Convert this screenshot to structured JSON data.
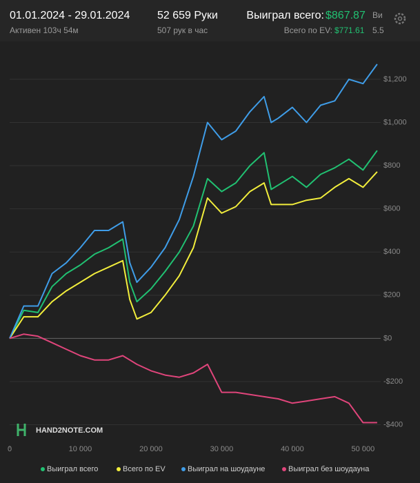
{
  "header": {
    "dates": "01.01.2024 - 29.01.2024",
    "active": "Активен 103ч 54м",
    "hands": "52 659 Руки",
    "rate": "507 рук в час",
    "won_label": "Выиграл всего:",
    "won_value": "$867.87",
    "ev_label": "Всего по EV:",
    "ev_value": "$771.61",
    "cut_label": "Ви",
    "cut_value": "5.5",
    "watermark": "HAND2NOTE.COM"
  },
  "chart_data": {
    "type": "line",
    "x": [
      0,
      2000,
      4000,
      6000,
      8000,
      10000,
      12000,
      14000,
      16000,
      17000,
      18000,
      20000,
      22000,
      24000,
      26000,
      28000,
      30000,
      32000,
      34000,
      36000,
      37000,
      38000,
      40000,
      42000,
      44000,
      46000,
      48000,
      50000,
      52000
    ],
    "series": [
      {
        "name": "Выиграл всего",
        "color": "#21c172",
        "values": [
          0,
          130,
          120,
          240,
          300,
          340,
          390,
          420,
          460,
          260,
          170,
          230,
          310,
          400,
          520,
          740,
          680,
          720,
          800,
          860,
          690,
          710,
          750,
          700,
          760,
          790,
          830,
          780,
          870
        ]
      },
      {
        "name": "Всего по EV",
        "color": "#f2ee3c",
        "values": [
          0,
          100,
          100,
          170,
          220,
          260,
          300,
          330,
          360,
          180,
          90,
          120,
          200,
          290,
          420,
          650,
          580,
          610,
          680,
          720,
          620,
          620,
          620,
          640,
          650,
          700,
          740,
          700,
          772
        ]
      },
      {
        "name": "Выиграл на шоудауне",
        "color": "#3f9de8",
        "values": [
          0,
          150,
          150,
          300,
          350,
          420,
          500,
          500,
          540,
          350,
          260,
          330,
          420,
          550,
          750,
          1000,
          920,
          960,
          1050,
          1120,
          1000,
          1020,
          1070,
          1000,
          1080,
          1100,
          1200,
          1180,
          1270
        ]
      },
      {
        "name": "Выиграл без шоудауна",
        "color": "#e0457b",
        "values": [
          0,
          20,
          10,
          -20,
          -50,
          -80,
          -100,
          -100,
          -80,
          -100,
          -120,
          -150,
          -170,
          -180,
          -160,
          -120,
          -250,
          -250,
          -260,
          -270,
          -275,
          -280,
          -300,
          -290,
          -280,
          -270,
          -300,
          -390,
          -390
        ]
      }
    ],
    "xlim": [
      0,
      52500
    ],
    "ylim": [
      -510,
      1350
    ],
    "xticks": [
      0,
      {
        "value": 10000,
        "label": "10 000"
      },
      {
        "value": 20000,
        "label": "20 000"
      },
      {
        "value": 30000,
        "label": "30 000"
      },
      {
        "value": 40000,
        "label": "40 000"
      },
      {
        "value": 50000,
        "label": "50 000"
      }
    ],
    "yticks": [
      {
        "value": -400,
        "label": "-$400"
      },
      {
        "value": -200,
        "label": "-$200"
      },
      {
        "value": 0,
        "label": "$0"
      },
      {
        "value": 200,
        "label": "$200"
      },
      {
        "value": 400,
        "label": "$400"
      },
      {
        "value": 600,
        "label": "$600"
      },
      {
        "value": 800,
        "label": "$800"
      },
      {
        "value": 1000,
        "label": "$1,000"
      },
      {
        "value": 1200,
        "label": "$1,200"
      }
    ],
    "grid": true
  }
}
